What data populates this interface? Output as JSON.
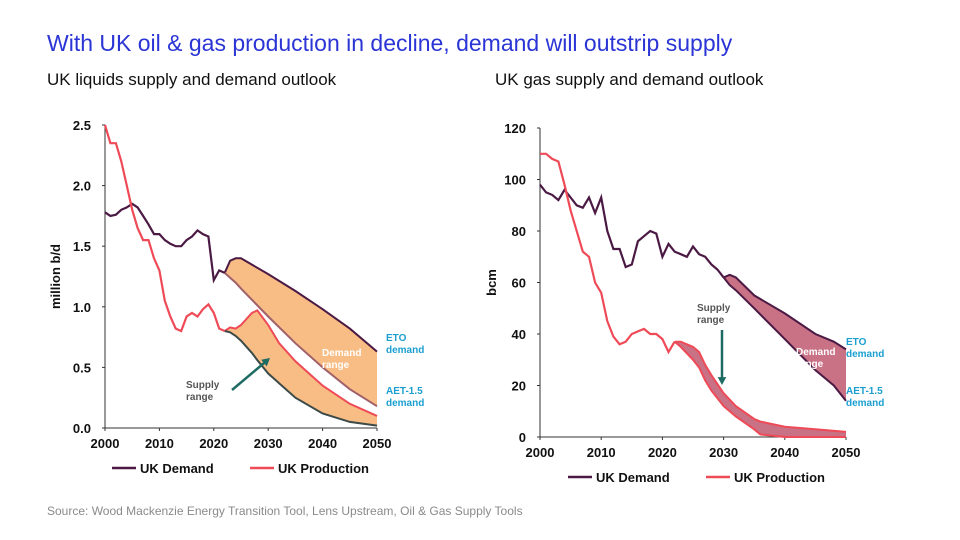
{
  "title": "With UK oil & gas production in decline, demand will outstrip supply",
  "source": "Source: Wood Mackenzie Energy Transition Tool,  Lens Upstream,  Oil & Gas Supply Tools",
  "chart_data": [
    {
      "type": "line",
      "title": "UK liquids supply and demand outlook",
      "y_label": "million b/d",
      "xlim": [
        2000,
        2050
      ],
      "xticks": [
        2000,
        2010,
        2020,
        2030,
        2040,
        2050
      ],
      "ylim": [
        0,
        2.5
      ],
      "yticks": [
        {
          "value": 0,
          "label": "0.0"
        },
        0.5,
        {
          "value": 1,
          "label": "1.0"
        },
        1.5,
        {
          "value": 2,
          "label": "2.0"
        },
        2.5
      ],
      "series": [
        {
          "name": "UK Demand",
          "color": "#4b1a44",
          "x": [
            2000,
            2001,
            2002,
            2003,
            2004,
            2005,
            2006,
            2007,
            2008,
            2009,
            2010,
            2011,
            2012,
            2013,
            2014,
            2015,
            2016,
            2017,
            2018,
            2019,
            2020,
            2021,
            2022
          ],
          "values": [
            1.78,
            1.75,
            1.76,
            1.8,
            1.82,
            1.85,
            1.82,
            1.75,
            1.68,
            1.6,
            1.6,
            1.55,
            1.52,
            1.5,
            1.5,
            1.55,
            1.58,
            1.63,
            1.6,
            1.58,
            1.22,
            1.3,
            1.28
          ]
        },
        {
          "name": "UK Production",
          "color": "#ee4a57",
          "x": [
            2000,
            2001,
            2002,
            2003,
            2004,
            2005,
            2006,
            2007,
            2008,
            2009,
            2010,
            2011,
            2012,
            2013,
            2014,
            2015,
            2016,
            2017,
            2018,
            2019,
            2020,
            2021,
            2022
          ],
          "values": [
            2.5,
            2.35,
            2.35,
            2.2,
            2.0,
            1.8,
            1.65,
            1.55,
            1.55,
            1.4,
            1.3,
            1.05,
            0.92,
            0.82,
            0.8,
            0.92,
            0.95,
            0.92,
            0.98,
            1.02,
            0.95,
            0.82,
            0.8
          ]
        }
      ],
      "bands": [
        {
          "name": "Demand range",
          "color": "#f8bd84",
          "upper_color": "#4b1a44",
          "lower_color": "#a0606a",
          "x": [
            2022,
            2023,
            2024,
            2025,
            2030,
            2035,
            2040,
            2045,
            2050
          ],
          "upper": [
            1.28,
            1.38,
            1.4,
            1.4,
            1.27,
            1.13,
            0.98,
            0.82,
            0.63
          ],
          "lower": [
            1.28,
            1.24,
            1.2,
            1.15,
            0.92,
            0.7,
            0.5,
            0.32,
            0.18
          ]
        },
        {
          "name": "Supply range",
          "color": "#f8bd84",
          "upper_color": "#ee4a57",
          "lower_color": "#3c4a48",
          "x": [
            2022,
            2023,
            2024,
            2025,
            2027,
            2028,
            2030,
            2032,
            2035,
            2040,
            2045,
            2050
          ],
          "upper": [
            0.8,
            0.83,
            0.82,
            0.85,
            0.95,
            0.97,
            0.85,
            0.7,
            0.55,
            0.35,
            0.2,
            0.1
          ],
          "lower": [
            0.8,
            0.79,
            0.76,
            0.72,
            0.62,
            0.56,
            0.45,
            0.37,
            0.25,
            0.12,
            0.05,
            0.02
          ]
        }
      ],
      "annotations": [
        "ETO demand",
        "AET-1.5 demand"
      ]
    },
    {
      "type": "line",
      "title": "UK gas supply and demand outlook",
      "y_label": "bcm",
      "xlim": [
        2000,
        2050
      ],
      "xticks": [
        2000,
        2010,
        2020,
        2030,
        2040,
        2050
      ],
      "ylim": [
        0,
        120
      ],
      "yticks": [
        0,
        20,
        40,
        60,
        80,
        100,
        120
      ],
      "series": [
        {
          "name": "UK Demand",
          "color": "#4b1a44",
          "x": [
            2000,
            2001,
            2002,
            2003,
            2004,
            2005,
            2006,
            2007,
            2008,
            2009,
            2010,
            2011,
            2012,
            2013,
            2014,
            2015,
            2016,
            2017,
            2018,
            2019,
            2020,
            2021,
            2022,
            2023,
            2024,
            2025,
            2026,
            2027,
            2028,
            2029,
            2030
          ],
          "values": [
            98,
            95,
            94,
            92,
            96,
            93,
            90,
            89,
            93,
            87,
            93,
            80,
            73,
            73,
            66,
            67,
            76,
            78,
            80,
            79,
            70,
            75,
            72,
            71,
            70,
            74,
            71,
            70,
            67,
            65,
            62
          ]
        },
        {
          "name": "UK Production",
          "color": "#ee4a57",
          "x": [
            2000,
            2001,
            2002,
            2003,
            2004,
            2005,
            2006,
            2007,
            2008,
            2009,
            2010,
            2011,
            2012,
            2013,
            2014,
            2015,
            2016,
            2017,
            2018,
            2019,
            2020,
            2021,
            2022
          ],
          "values": [
            110,
            110,
            108,
            107,
            98,
            88,
            80,
            72,
            70,
            60,
            56,
            45,
            39,
            36,
            37,
            40,
            41,
            42,
            40,
            40,
            38,
            33,
            37
          ]
        }
      ],
      "bands": [
        {
          "name": "Demand range",
          "color": "#c97185",
          "upper_color": "#4b1a44",
          "lower_color": "#4b1a44",
          "x": [
            2030,
            2031,
            2032,
            2035,
            2040,
            2045,
            2048,
            2050
          ],
          "upper": [
            62,
            63,
            62,
            55,
            48,
            40,
            37,
            34
          ],
          "lower": [
            62,
            59,
            57,
            50,
            38,
            26,
            20,
            14
          ]
        },
        {
          "name": "Supply range",
          "color": "#c97185",
          "upper_color": "#ee4a57",
          "lower_color": "#ee4a57",
          "x": [
            2022,
            2023,
            2025,
            2026,
            2027,
            2028,
            2030,
            2032,
            2035,
            2036,
            2040,
            2045,
            2050
          ],
          "upper": [
            37,
            37,
            35,
            33,
            28,
            24,
            17,
            12,
            7,
            6,
            4,
            3,
            2
          ],
          "lower": [
            37,
            35,
            30,
            27,
            22,
            18,
            12,
            8,
            3,
            1,
            0,
            0,
            0
          ]
        }
      ],
      "annotations": [
        "ETO demand",
        "AET-1.5 demand"
      ]
    }
  ]
}
